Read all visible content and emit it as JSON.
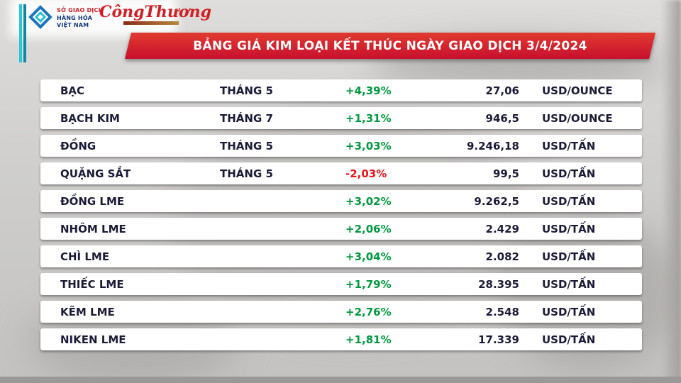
{
  "header": {
    "mxv_logo": {
      "line1": "SỞ GIAO DỊCH",
      "line2": "HÀNG HÓA",
      "line3": "VIỆT NAM"
    },
    "congthuong_logo": "CôngThương",
    "title": "BẢNG GIÁ KIM LOẠI KẾT THÚC NGÀY GIAO DỊCH 3/4/2024"
  },
  "colors": {
    "banner_red": "#c8102e",
    "positive_green": "#00993f",
    "negative_red": "#e8141c",
    "text_navy": "#1b1b38",
    "accent_cyan": "#2ec6d6",
    "accent_teal": "#0a89a5"
  },
  "chart_data": {
    "type": "table",
    "title": "BẢNG GIÁ KIM LOẠI KẾT THÚC NGÀY GIAO DỊCH 3/4/2024",
    "columns": [
      "name",
      "month",
      "change",
      "price",
      "unit"
    ],
    "rows": [
      {
        "name": "BẠC",
        "month": "THÁNG 5",
        "change": "+4,39%",
        "price": "27,06",
        "unit": "USD/OUNCE"
      },
      {
        "name": "BẠCH KIM",
        "month": "THÁNG 7",
        "change": "+1,31%",
        "price": "946,5",
        "unit": "USD/OUNCE"
      },
      {
        "name": "ĐỒNG",
        "month": "THÁNG 5",
        "change": "+3,03%",
        "price": "9.246,18",
        "unit": "USD/TẤN"
      },
      {
        "name": "QUẶNG SẮT",
        "month": "THÁNG 5",
        "change": "-2,03%",
        "price": "99,5",
        "unit": "USD/TẤN"
      },
      {
        "name": "ĐỒNG LME",
        "month": "",
        "change": "+3,02%",
        "price": "9.262,5",
        "unit": "USD/TẤN"
      },
      {
        "name": "NHÔM LME",
        "month": "",
        "change": "+2,06%",
        "price": "2.429",
        "unit": "USD/TẤN"
      },
      {
        "name": "CHÌ LME",
        "month": "",
        "change": "+3,04%",
        "price": "2.082",
        "unit": "USD/TẤN"
      },
      {
        "name": "THIẾC LME",
        "month": "",
        "change": "+1,79%",
        "price": "28.395",
        "unit": "USD/TẤN"
      },
      {
        "name": "KẼM LME",
        "month": "",
        "change": "+2,76%",
        "price": "2.548",
        "unit": "USD/TẤN"
      },
      {
        "name": "NIKEN LME",
        "month": "",
        "change": "+1,81%",
        "price": "17.339",
        "unit": "USD/TẤN"
      }
    ]
  }
}
